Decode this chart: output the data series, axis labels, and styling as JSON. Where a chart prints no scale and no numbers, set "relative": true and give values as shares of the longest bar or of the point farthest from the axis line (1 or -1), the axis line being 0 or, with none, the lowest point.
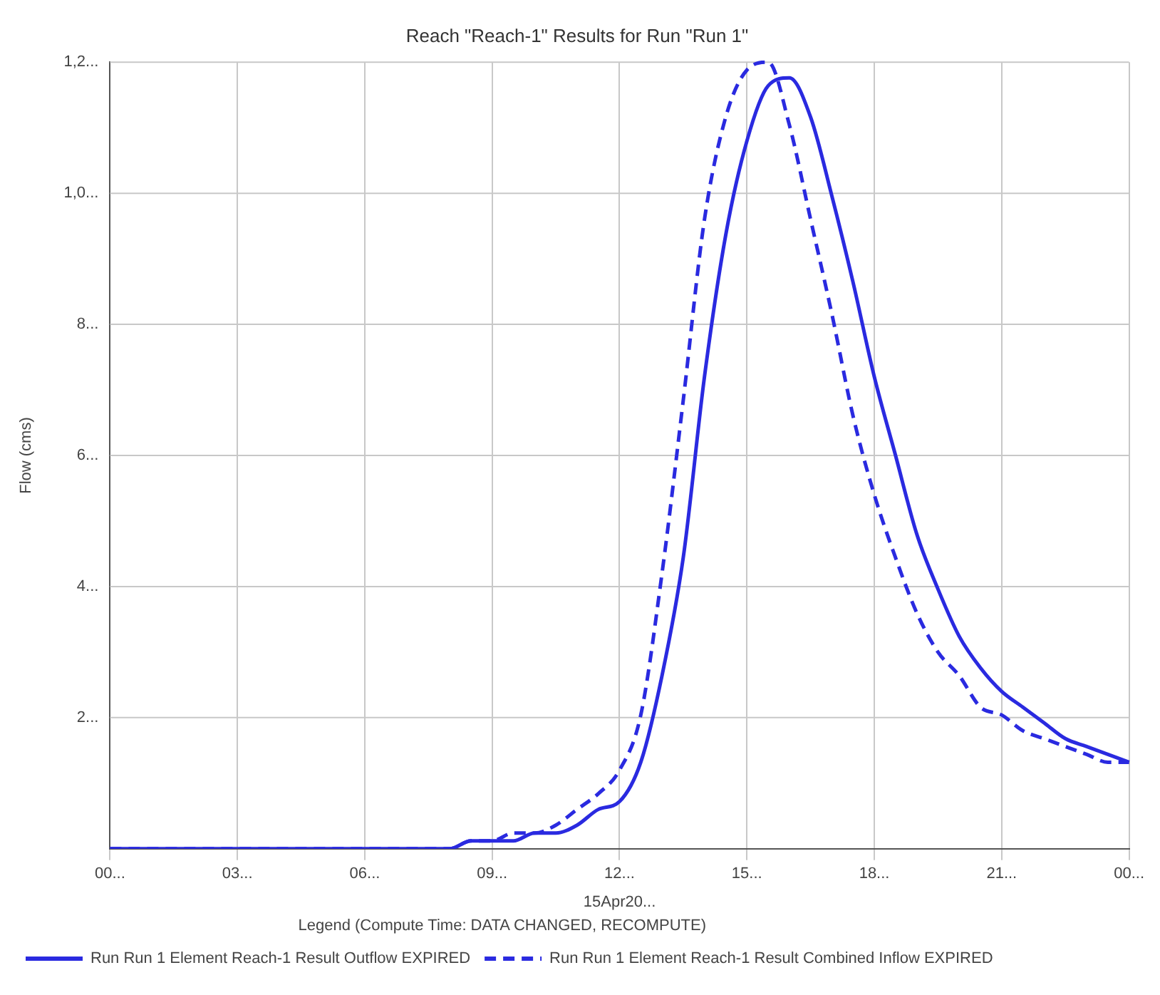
{
  "chart_data": {
    "type": "line",
    "title": "Reach \"Reach-1\" Results for Run \"Run 1\"",
    "xlabel": "15Apr20...",
    "ylabel": "Flow (cms)",
    "legend_title": "Legend (Compute Time: DATA CHANGED, RECOMPUTE)",
    "relative": true,
    "annotations": [
      "2...",
      "4...",
      "6...",
      "8...",
      "1,0...",
      "1,2..."
    ],
    "categories": [
      "00...",
      null,
      null,
      null,
      null,
      null,
      "03...",
      null,
      null,
      null,
      null,
      null,
      "06...",
      null,
      null,
      null,
      null,
      null,
      "09...",
      null,
      null,
      null,
      null,
      null,
      "12...",
      null,
      null,
      null,
      null,
      null,
      "15...",
      null,
      null,
      null,
      null,
      null,
      "18...",
      null,
      null,
      null,
      null,
      null,
      "21...",
      null,
      null,
      null,
      null,
      null,
      "00..."
    ],
    "grid": true,
    "legend": "bottom",
    "marker": "none",
    "series": [
      {
        "name": "Run Run 1 Element Reach-1 Result Outflow EXPIRED",
        "color": "#2a2ae0",
        "line_style": "solid",
        "values": [
          0,
          0,
          0,
          0,
          0,
          0,
          0,
          0,
          0,
          0,
          0,
          0,
          0,
          0,
          0,
          0,
          0,
          0.01,
          0.01,
          0.01,
          0.02,
          0.02,
          0.03,
          0.05,
          0.06,
          0.11,
          0.22,
          0.37,
          0.6,
          0.78,
          0.9,
          0.97,
          0.98,
          0.93,
          0.83,
          0.72,
          0.6,
          0.5,
          0.4,
          0.33,
          0.27,
          0.23,
          0.2,
          0.18,
          0.16,
          0.14,
          0.13,
          0.12,
          0.11
        ]
      },
      {
        "name": "Run Run 1 Element Reach-1 Result Combined Inflow EXPIRED",
        "color": "#2a2ae0",
        "line_style": "dashed",
        "values": [
          0,
          0,
          0,
          0,
          0,
          0,
          0,
          0,
          0,
          0,
          0,
          0,
          0,
          0,
          0,
          0,
          0,
          0.01,
          0.01,
          0.02,
          0.02,
          0.03,
          0.05,
          0.07,
          0.1,
          0.17,
          0.35,
          0.57,
          0.8,
          0.93,
          0.99,
          1,
          0.92,
          0.8,
          0.68,
          0.55,
          0.45,
          0.37,
          0.3,
          0.25,
          0.22,
          0.18,
          0.17,
          0.15,
          0.14,
          0.13,
          0.12,
          0.11,
          0.11
        ]
      }
    ]
  }
}
